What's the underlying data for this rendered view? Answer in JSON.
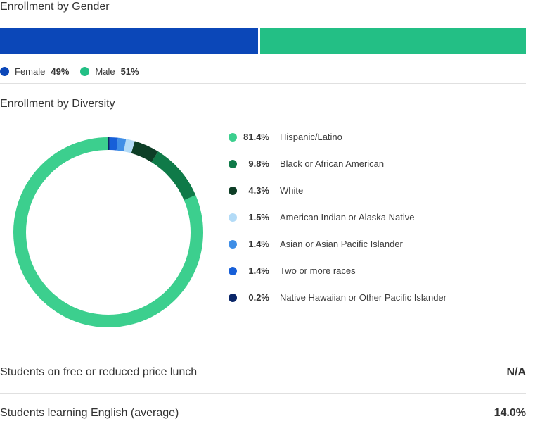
{
  "gender": {
    "title": "Enrollment by Gender",
    "items": [
      {
        "label": "Female",
        "pct_label": "49%",
        "value": 49,
        "color": "#0b47b8"
      },
      {
        "label": "Male",
        "pct_label": "51%",
        "value": 51,
        "color": "#23bf85"
      }
    ]
  },
  "diversity": {
    "title": "Enrollment by Diversity",
    "items": [
      {
        "label": "Hispanic/Latino",
        "pct_label": "81.4%",
        "value": 81.4,
        "color": "#3ccf8e"
      },
      {
        "label": "Black or African American",
        "pct_label": "9.8%",
        "value": 9.8,
        "color": "#0f7a48"
      },
      {
        "label": "White",
        "pct_label": "4.3%",
        "value": 4.3,
        "color": "#0d3e26"
      },
      {
        "label": "American Indian or Alaska Native",
        "pct_label": "1.5%",
        "value": 1.5,
        "color": "#b3dbf7"
      },
      {
        "label": "Asian or Asian Pacific Islander",
        "pct_label": "1.4%",
        "value": 1.4,
        "color": "#3f8ee6"
      },
      {
        "label": "Two or more races",
        "pct_label": "1.4%",
        "value": 1.4,
        "color": "#175fd8"
      },
      {
        "label": "Native Hawaiian or Other Pacific Islander",
        "pct_label": "0.2%",
        "value": 0.2,
        "color": "#0a2668"
      }
    ]
  },
  "stats": {
    "lunch": {
      "label": "Students on free or reduced price lunch",
      "value": "N/A"
    },
    "english": {
      "label": "Students learning English (average)",
      "value": "14.0%"
    }
  },
  "chart_data": [
    {
      "type": "bar",
      "title": "Enrollment by Gender",
      "categories": [
        "Female",
        "Male"
      ],
      "values": [
        49,
        51
      ],
      "stacked": true,
      "orientation": "horizontal",
      "legend": "bottom-left"
    },
    {
      "type": "pie",
      "title": "Enrollment by Diversity",
      "donut": true,
      "categories": [
        "Hispanic/Latino",
        "Black or African American",
        "White",
        "American Indian or Alaska Native",
        "Asian or Asian Pacific Islander",
        "Two or more races",
        "Native Hawaiian or Other Pacific Islander"
      ],
      "values": [
        81.4,
        9.8,
        4.3,
        1.5,
        1.4,
        1.4,
        0.2
      ],
      "legend": "right"
    }
  ]
}
